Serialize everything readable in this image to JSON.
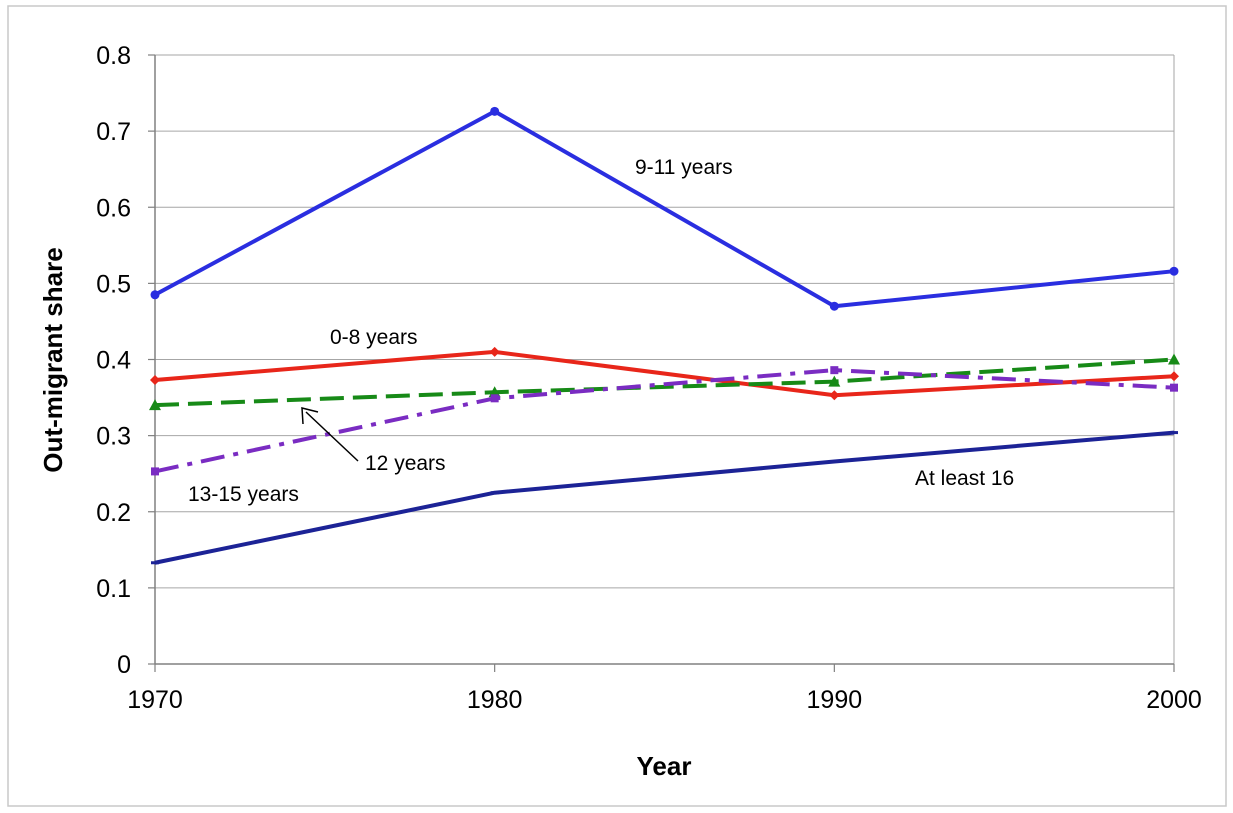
{
  "chart_data": {
    "type": "line",
    "title": "",
    "xlabel": "Year",
    "ylabel": "Out-migrant share",
    "x": [
      1970,
      1980,
      1990,
      2000
    ],
    "x_tick_labels": [
      "1970",
      "1980",
      "1990",
      "2000"
    ],
    "ylim": [
      0,
      0.8
    ],
    "y_ticks": [
      0,
      0.1,
      0.2,
      0.3,
      0.4,
      0.5,
      0.6,
      0.7,
      0.8
    ],
    "y_tick_labels": [
      "0",
      "0.1",
      "0.2",
      "0.3",
      "0.4",
      "0.5",
      "0.6",
      "0.7",
      "0.8"
    ],
    "grid": "horizontal",
    "legend": "none",
    "series": [
      {
        "name": "9-11 years",
        "values": [
          0.485,
          0.726,
          0.47,
          0.516
        ],
        "color": "#2a2ee0",
        "style": "solid",
        "marker": "circle"
      },
      {
        "name": "0-8 years",
        "values": [
          0.373,
          0.41,
          0.353,
          0.378
        ],
        "color": "#e8261a",
        "style": "solid",
        "marker": "diamond"
      },
      {
        "name": "12 years",
        "values": [
          0.34,
          0.357,
          0.371,
          0.4
        ],
        "color": "#178a17",
        "style": "dashed",
        "marker": "triangle"
      },
      {
        "name": "13-15 years",
        "values": [
          0.253,
          0.349,
          0.386,
          0.363
        ],
        "color": "#7a2cc2",
        "style": "dashdot",
        "marker": "square"
      },
      {
        "name": "At least 16",
        "values": [
          0.133,
          0.225,
          0.266,
          0.304
        ],
        "color": "#1c2396",
        "style": "solid",
        "marker": "dash"
      }
    ],
    "annotations": [
      {
        "text": "9-11 years",
        "series": "9-11 years"
      },
      {
        "text": "0-8 years",
        "series": "0-8 years"
      },
      {
        "text": "12 years",
        "series": "12 years",
        "arrow": true
      },
      {
        "text": "13-15 years",
        "series": "13-15 years"
      },
      {
        "text": "At least 16",
        "series": "At least 16"
      }
    ]
  }
}
